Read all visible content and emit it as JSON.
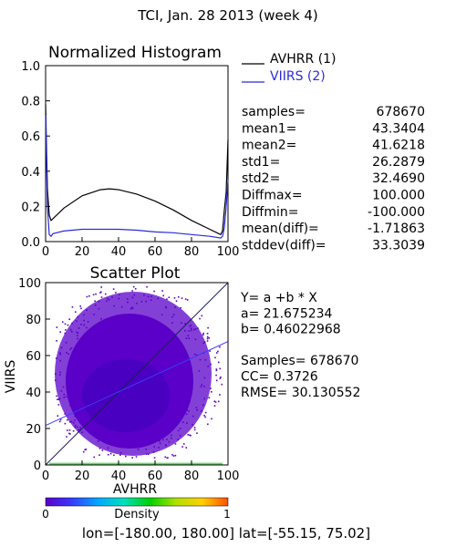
{
  "title": "TCI,  Jan. 28 2013 (week 4)",
  "colors": {
    "avhrr": "#000000",
    "viirs": "#2a2adc",
    "scatter_fill": "#5a00c8",
    "fit_line": "#3a3aff",
    "diag_line": "#1c1c5a",
    "colorbar": [
      "#5a00c8",
      "#3a3aff",
      "#00a8ff",
      "#00e0c0",
      "#00d000",
      "#b0e000",
      "#ffd000",
      "#ff5000"
    ]
  },
  "histogram": {
    "title": "Normalized Histogram",
    "x_ticks": [
      "0",
      "20",
      "40",
      "60",
      "80",
      "100"
    ],
    "y_ticks": [
      "0.0",
      "0.2",
      "0.4",
      "0.6",
      "0.8",
      "1.0"
    ],
    "legend": [
      {
        "label": "AVHRR (1)",
        "color": "#000000"
      },
      {
        "label": "VIIRS (2)",
        "color": "#2a2adc"
      }
    ]
  },
  "stats": [
    {
      "label": "samples=",
      "value": "678670"
    },
    {
      "label": "mean1=",
      "value": "43.3404"
    },
    {
      "label": "mean2=",
      "value": "41.6218"
    },
    {
      "label": "std1=",
      "value": "26.2879"
    },
    {
      "label": "std2=",
      "value": "32.4690"
    },
    {
      "label": "Diffmax=",
      "value": "100.000"
    },
    {
      "label": "Diffmin=",
      "value": "-100.000"
    },
    {
      "label": "mean(diff)=",
      "value": "-1.71863"
    },
    {
      "label": "stddev(diff)=",
      "value": "33.3039"
    }
  ],
  "scatter": {
    "title": "Scatter Plot",
    "xlabel": "AVHRR",
    "ylabel": "VIIRS",
    "x_ticks": [
      "0",
      "20",
      "40",
      "60",
      "80",
      "100"
    ],
    "y_ticks": [
      "0",
      "20",
      "40",
      "60",
      "80",
      "100"
    ],
    "fit_lines": [
      "Y= a +b * X",
      "a= 21.675234",
      "b= 0.46022968",
      "",
      "Samples= 678670",
      "CC=  0.3726",
      "RMSE= 30.130552"
    ]
  },
  "colorbar": {
    "label": "Density",
    "min_label": "0",
    "max_label": "1"
  },
  "footer": "lon=[-180.00, 180.00] lat=[-55.15, 75.02]",
  "chart_data": [
    {
      "type": "line",
      "title": "Normalized Histogram",
      "xlim": [
        0,
        100
      ],
      "ylim": [
        0,
        1
      ],
      "grid": false,
      "legend_position": "right",
      "series": [
        {
          "name": "AVHRR (1)",
          "x": [
            0,
            1,
            2,
            3,
            4,
            10,
            20,
            30,
            35,
            40,
            50,
            60,
            70,
            80,
            90,
            96,
            97,
            98,
            99,
            100
          ],
          "y": [
            0.78,
            0.3,
            0.15,
            0.12,
            0.13,
            0.19,
            0.26,
            0.295,
            0.3,
            0.295,
            0.27,
            0.23,
            0.18,
            0.12,
            0.07,
            0.04,
            0.06,
            0.18,
            0.28,
            0.58
          ]
        },
        {
          "name": "VIIRS (2)",
          "x": [
            0,
            1,
            2,
            3,
            4,
            10,
            20,
            30,
            40,
            50,
            60,
            70,
            80,
            90,
            96,
            97,
            98,
            99,
            100
          ],
          "y": [
            0.72,
            0.2,
            0.04,
            0.03,
            0.045,
            0.06,
            0.07,
            0.07,
            0.07,
            0.065,
            0.055,
            0.05,
            0.04,
            0.03,
            0.02,
            0.03,
            0.08,
            0.2,
            0.35
          ]
        }
      ]
    },
    {
      "type": "scatter",
      "title": "Scatter Plot",
      "xlabel": "AVHRR",
      "ylabel": "VIIRS",
      "xlim": [
        0,
        100
      ],
      "ylim": [
        0,
        100
      ],
      "samples": 678670,
      "regression": {
        "a": 21.675234,
        "b": 0.46022968
      },
      "cc": 0.3726,
      "rmse": 30.130552,
      "density_range": [
        0,
        1
      ]
    }
  ]
}
